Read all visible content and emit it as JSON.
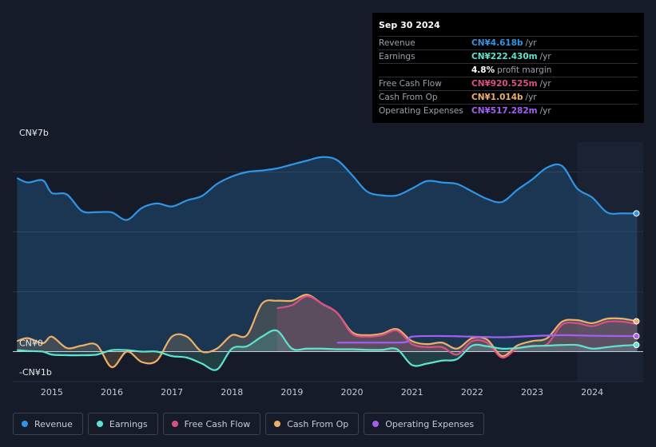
{
  "tooltip": {
    "date": "Sep 30 2024",
    "rows": [
      {
        "label": "Revenue",
        "value": "CN¥4.618b",
        "unit": "/yr",
        "color": "#2f95e4"
      },
      {
        "label": "Earnings",
        "value": "CN¥222.430m",
        "unit": "/yr",
        "color": "#5de3cf"
      },
      {
        "label": "",
        "value": "4.8%",
        "unit": "profit margin",
        "color": "#ffffff"
      },
      {
        "label": "Free Cash Flow",
        "value": "CN¥920.525m",
        "unit": "/yr",
        "color": "#d94f86"
      },
      {
        "label": "Cash From Op",
        "value": "CN¥1.014b",
        "unit": "/yr",
        "color": "#eeb068"
      },
      {
        "label": "Operating Expenses",
        "value": "CN¥517.282m",
        "unit": "/yr",
        "color": "#a55ef2"
      }
    ]
  },
  "legend": [
    {
      "label": "Revenue",
      "color": "#2f95e4"
    },
    {
      "label": "Earnings",
      "color": "#5de3cf"
    },
    {
      "label": "Free Cash Flow",
      "color": "#d94f86"
    },
    {
      "label": "Cash From Op",
      "color": "#eeb068"
    },
    {
      "label": "Operating Expenses",
      "color": "#a55ef2"
    }
  ],
  "chart_data": {
    "type": "line",
    "title": "",
    "y_unit": "CN¥ billions",
    "ylim": [
      -1,
      7
    ],
    "xlim": [
      2014.35,
      2024.85
    ],
    "y_labels": [
      {
        "value": 7,
        "text": "CN¥7b"
      },
      {
        "value": 0,
        "text": "CN¥0"
      },
      {
        "value": -1,
        "text": "-CN¥1b"
      }
    ],
    "x_ticks": [
      {
        "value": 2015,
        "text": "2015"
      },
      {
        "value": 2016,
        "text": "2016"
      },
      {
        "value": 2017,
        "text": "2017"
      },
      {
        "value": 2018,
        "text": "2018"
      },
      {
        "value": 2019,
        "text": "2019"
      },
      {
        "value": 2020,
        "text": "2020"
      },
      {
        "value": 2021,
        "text": "2021"
      },
      {
        "value": 2022,
        "text": "2022"
      },
      {
        "value": 2023,
        "text": "2023"
      },
      {
        "value": 2024,
        "text": "2024"
      }
    ],
    "gridlines": [
      2,
      4,
      6
    ],
    "forecast_start": 2023.75,
    "series": [
      {
        "name": "Revenue",
        "color": "#2f95e4",
        "area": true,
        "end_marker": true,
        "points": [
          [
            2014.42,
            5.8
          ],
          [
            2014.6,
            5.65
          ],
          [
            2014.85,
            5.72
          ],
          [
            2015.0,
            5.3
          ],
          [
            2015.25,
            5.25
          ],
          [
            2015.5,
            4.7
          ],
          [
            2015.75,
            4.66
          ],
          [
            2016.0,
            4.65
          ],
          [
            2016.25,
            4.4
          ],
          [
            2016.5,
            4.8
          ],
          [
            2016.75,
            4.95
          ],
          [
            2017.0,
            4.85
          ],
          [
            2017.25,
            5.05
          ],
          [
            2017.5,
            5.2
          ],
          [
            2017.75,
            5.6
          ],
          [
            2018.0,
            5.85
          ],
          [
            2018.25,
            6.0
          ],
          [
            2018.5,
            6.05
          ],
          [
            2018.75,
            6.12
          ],
          [
            2019.0,
            6.25
          ],
          [
            2019.25,
            6.38
          ],
          [
            2019.5,
            6.5
          ],
          [
            2019.75,
            6.4
          ],
          [
            2020.0,
            5.9
          ],
          [
            2020.25,
            5.35
          ],
          [
            2020.5,
            5.22
          ],
          [
            2020.75,
            5.22
          ],
          [
            2021.0,
            5.45
          ],
          [
            2021.25,
            5.7
          ],
          [
            2021.5,
            5.65
          ],
          [
            2021.75,
            5.6
          ],
          [
            2022.0,
            5.35
          ],
          [
            2022.25,
            5.1
          ],
          [
            2022.5,
            5.0
          ],
          [
            2022.75,
            5.4
          ],
          [
            2023.0,
            5.75
          ],
          [
            2023.25,
            6.15
          ],
          [
            2023.5,
            6.2
          ],
          [
            2023.75,
            5.45
          ],
          [
            2024.0,
            5.15
          ],
          [
            2024.25,
            4.65
          ],
          [
            2024.5,
            4.62
          ],
          [
            2024.75,
            4.618
          ]
        ]
      },
      {
        "name": "Cash From Op",
        "color": "#eeb068",
        "area": true,
        "end_marker": true,
        "points": [
          [
            2014.42,
            0.35
          ],
          [
            2014.6,
            0.45
          ],
          [
            2014.85,
            0.28
          ],
          [
            2015.0,
            0.5
          ],
          [
            2015.25,
            0.12
          ],
          [
            2015.5,
            0.2
          ],
          [
            2015.75,
            0.22
          ],
          [
            2016.0,
            -0.52
          ],
          [
            2016.25,
            0.0
          ],
          [
            2016.5,
            -0.35
          ],
          [
            2016.75,
            -0.3
          ],
          [
            2017.0,
            0.5
          ],
          [
            2017.25,
            0.5
          ],
          [
            2017.5,
            0.0
          ],
          [
            2017.75,
            0.1
          ],
          [
            2018.0,
            0.55
          ],
          [
            2018.25,
            0.55
          ],
          [
            2018.5,
            1.6
          ],
          [
            2018.75,
            1.7
          ],
          [
            2019.0,
            1.7
          ],
          [
            2019.25,
            1.9
          ],
          [
            2019.5,
            1.6
          ],
          [
            2019.75,
            1.3
          ],
          [
            2020.0,
            0.65
          ],
          [
            2020.25,
            0.55
          ],
          [
            2020.5,
            0.6
          ],
          [
            2020.75,
            0.75
          ],
          [
            2021.0,
            0.35
          ],
          [
            2021.25,
            0.25
          ],
          [
            2021.5,
            0.3
          ],
          [
            2021.75,
            0.1
          ],
          [
            2022.0,
            0.45
          ],
          [
            2022.25,
            0.4
          ],
          [
            2022.5,
            -0.15
          ],
          [
            2022.75,
            0.2
          ],
          [
            2023.0,
            0.35
          ],
          [
            2023.25,
            0.45
          ],
          [
            2023.5,
            1.0
          ],
          [
            2023.75,
            1.05
          ],
          [
            2024.0,
            0.95
          ],
          [
            2024.25,
            1.1
          ],
          [
            2024.5,
            1.1
          ],
          [
            2024.75,
            1.014
          ]
        ]
      },
      {
        "name": "Free Cash Flow",
        "color": "#d94f86",
        "area": true,
        "end_marker": false,
        "points": [
          [
            2018.75,
            1.45
          ],
          [
            2019.0,
            1.55
          ],
          [
            2019.25,
            1.85
          ],
          [
            2019.5,
            1.6
          ],
          [
            2019.75,
            1.3
          ],
          [
            2020.0,
            0.6
          ],
          [
            2020.25,
            0.5
          ],
          [
            2020.5,
            0.55
          ],
          [
            2020.75,
            0.7
          ],
          [
            2021.0,
            0.25
          ],
          [
            2021.25,
            0.15
          ],
          [
            2021.5,
            0.15
          ],
          [
            2021.75,
            -0.1
          ],
          [
            2022.0,
            0.35
          ],
          [
            2022.25,
            0.3
          ],
          [
            2022.5,
            -0.2
          ],
          [
            2022.75,
            0.1
          ],
          [
            2023.0,
            0.2
          ],
          [
            2023.25,
            0.25
          ],
          [
            2023.5,
            0.9
          ],
          [
            2023.75,
            0.95
          ],
          [
            2024.0,
            0.85
          ],
          [
            2024.25,
            1.0
          ],
          [
            2024.5,
            1.0
          ],
          [
            2024.75,
            0.92
          ]
        ]
      },
      {
        "name": "Earnings",
        "color": "#5de3cf",
        "area": true,
        "end_marker": true,
        "points": [
          [
            2014.42,
            0.05
          ],
          [
            2014.6,
            0.02
          ],
          [
            2014.85,
            0.0
          ],
          [
            2015.0,
            -0.1
          ],
          [
            2015.25,
            -0.12
          ],
          [
            2015.5,
            -0.12
          ],
          [
            2015.75,
            -0.1
          ],
          [
            2016.0,
            0.05
          ],
          [
            2016.25,
            0.05
          ],
          [
            2016.5,
            0.0
          ],
          [
            2016.75,
            0.0
          ],
          [
            2017.0,
            -0.15
          ],
          [
            2017.25,
            -0.2
          ],
          [
            2017.5,
            -0.4
          ],
          [
            2017.75,
            -0.6
          ],
          [
            2018.0,
            0.1
          ],
          [
            2018.25,
            0.18
          ],
          [
            2018.5,
            0.5
          ],
          [
            2018.75,
            0.7
          ],
          [
            2019.0,
            0.1
          ],
          [
            2019.25,
            0.1
          ],
          [
            2019.5,
            0.1
          ],
          [
            2019.75,
            0.08
          ],
          [
            2020.0,
            0.08
          ],
          [
            2020.25,
            0.06
          ],
          [
            2020.5,
            0.06
          ],
          [
            2020.75,
            0.08
          ],
          [
            2021.0,
            -0.45
          ],
          [
            2021.25,
            -0.4
          ],
          [
            2021.5,
            -0.3
          ],
          [
            2021.75,
            -0.25
          ],
          [
            2022.0,
            0.2
          ],
          [
            2022.25,
            0.18
          ],
          [
            2022.5,
            0.1
          ],
          [
            2022.75,
            0.12
          ],
          [
            2023.0,
            0.18
          ],
          [
            2023.25,
            0.2
          ],
          [
            2023.5,
            0.22
          ],
          [
            2023.75,
            0.22
          ],
          [
            2024.0,
            0.1
          ],
          [
            2024.25,
            0.15
          ],
          [
            2024.5,
            0.2
          ],
          [
            2024.75,
            0.222
          ]
        ]
      },
      {
        "name": "Operating Expenses",
        "color": "#a55ef2",
        "area": false,
        "end_marker": true,
        "points": [
          [
            2019.75,
            0.3
          ],
          [
            2020.0,
            0.3
          ],
          [
            2020.5,
            0.3
          ],
          [
            2020.9,
            0.32
          ],
          [
            2021.0,
            0.5
          ],
          [
            2021.5,
            0.52
          ],
          [
            2022.0,
            0.5
          ],
          [
            2022.5,
            0.48
          ],
          [
            2023.0,
            0.52
          ],
          [
            2023.5,
            0.55
          ],
          [
            2024.0,
            0.53
          ],
          [
            2024.5,
            0.52
          ],
          [
            2024.75,
            0.517
          ]
        ]
      }
    ]
  }
}
